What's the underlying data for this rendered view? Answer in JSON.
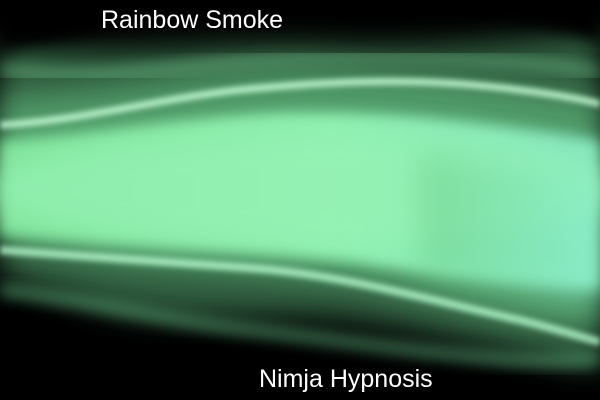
{
  "title": "Rainbow Smoke",
  "subtitle": "Nimja Hypnosis",
  "colors": {
    "background": "#000000",
    "smoke_core": "#8df0b0",
    "smoke_mid": "#4a9a6a",
    "smoke_highlight": "#c6ffd6",
    "smoke_teal": "#7ee6c4",
    "text": "#ffffff",
    "text_outline": "#000000"
  }
}
